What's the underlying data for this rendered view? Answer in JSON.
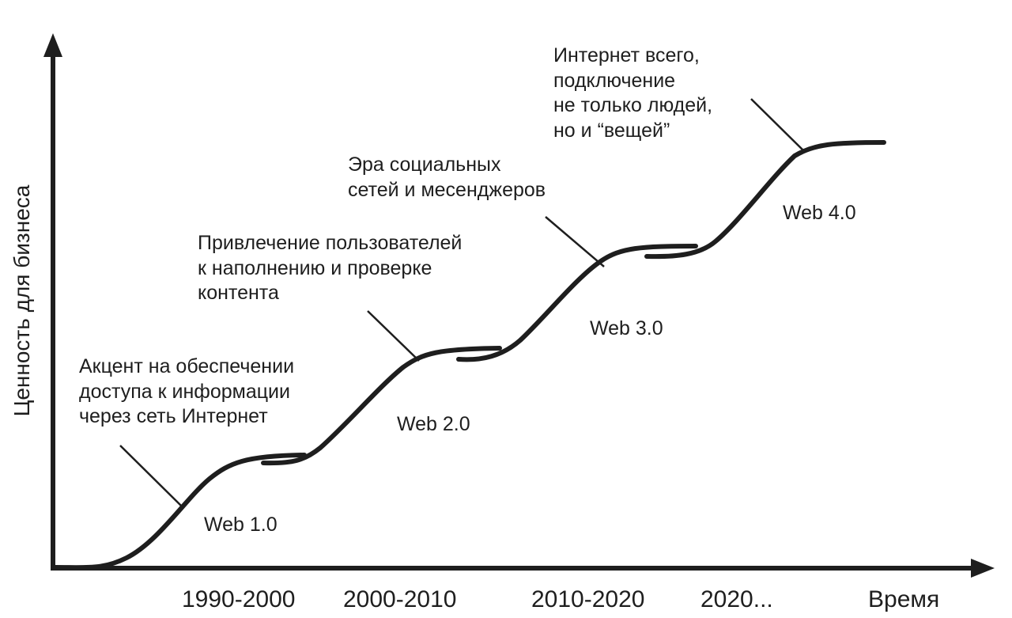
{
  "axes": {
    "y_label": "Ценность для бизнеса",
    "x_label": "Время"
  },
  "periods": [
    "1990-2000",
    "2000-2010",
    "2010-2020",
    "2020..."
  ],
  "stages": [
    {
      "name": "Web 1.0",
      "description": [
        "Акцент на обеспечении",
        "доступа к информации",
        "через сеть Интернет"
      ]
    },
    {
      "name": "Web 2.0",
      "description": [
        "Привлечение пользователей",
        "к наполнению и проверке",
        "контента"
      ]
    },
    {
      "name": "Web 3.0",
      "description": [
        "Эра социальных",
        "сетей и месенджеров"
      ]
    },
    {
      "name": "Web 4.0",
      "description": [
        "Интернет всего,",
        "подключение",
        "не только людей,",
        "но и “вещей”"
      ]
    }
  ],
  "colors": {
    "ink": "#1e1e1e",
    "background": "#ffffff"
  }
}
